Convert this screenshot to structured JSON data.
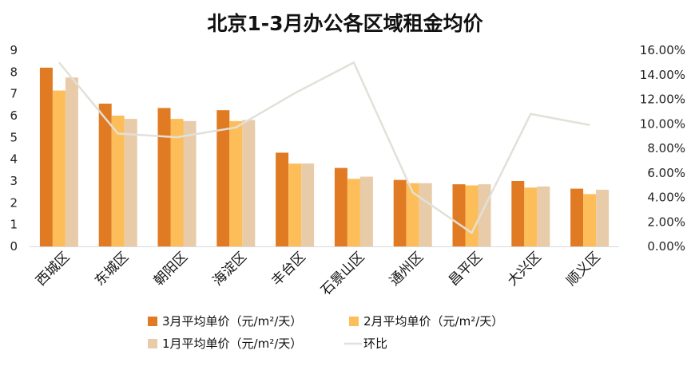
{
  "chart_data": {
    "type": "bar",
    "title": "北京1-3月办公各区域租金均价",
    "categories": [
      "西城区",
      "东城区",
      "朝阳区",
      "海淀区",
      "丰台区",
      "石景山区",
      "通州区",
      "昌平区",
      "大兴区",
      "顺义区"
    ],
    "series": [
      {
        "name": "3月平均单价（元/m²/天）",
        "type": "bar",
        "axis": "left",
        "color": "#E07B24",
        "values": [
          8.2,
          6.55,
          6.35,
          6.25,
          4.3,
          3.6,
          3.05,
          2.85,
          3.0,
          2.65
        ]
      },
      {
        "name": "2月平均单价（元/m²/天）",
        "type": "bar",
        "axis": "left",
        "color": "#FDBE5A",
        "values": [
          7.15,
          6.0,
          5.85,
          5.75,
          3.8,
          3.1,
          2.9,
          2.8,
          2.7,
          2.4
        ]
      },
      {
        "name": "1月平均单价（元/m²/天）",
        "type": "bar",
        "axis": "left",
        "color": "#E8CBA8",
        "values": [
          7.75,
          5.85,
          5.75,
          5.8,
          3.8,
          3.2,
          2.9,
          2.85,
          2.75,
          2.6
        ]
      },
      {
        "name": "环比",
        "type": "line",
        "axis": "right",
        "color": "#E2E0D8",
        "values": [
          15.0,
          9.2,
          8.9,
          9.7,
          12.5,
          15.0,
          4.4,
          1.1,
          10.8,
          9.9
        ]
      }
    ],
    "y_left": {
      "min": 0,
      "max": 9,
      "ticks": [
        "0",
        "1",
        "2",
        "3",
        "4",
        "5",
        "6",
        "7",
        "8",
        "9"
      ]
    },
    "y_right": {
      "min": 0,
      "max": 16,
      "unit": "%",
      "ticks": [
        "0.00%",
        "2.00%",
        "4.00%",
        "6.00%",
        "8.00%",
        "10.00%",
        "12.00%",
        "14.00%",
        "16.00%"
      ]
    },
    "legend": {
      "position": "bottom"
    },
    "grid": false
  }
}
